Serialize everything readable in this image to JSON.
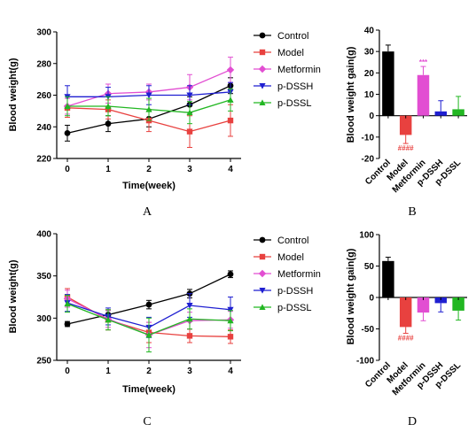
{
  "figure": {
    "panel_letters": [
      "A",
      "B",
      "C",
      "D"
    ]
  },
  "chart_data": [
    {
      "id": "A",
      "type": "line",
      "x": [
        0,
        1,
        2,
        3,
        4
      ],
      "xlabel": "Time(week)",
      "ylabel": "Blood weight(g)",
      "ylim": [
        220,
        300
      ],
      "yticks": [
        220,
        240,
        260,
        280,
        300
      ],
      "grid": false,
      "legend": "right",
      "series": [
        {
          "name": "Control",
          "color": "#000000",
          "marker": "circle",
          "values": [
            236,
            242,
            245,
            254,
            266
          ],
          "errors": [
            5,
            5,
            5,
            5,
            5
          ]
        },
        {
          "name": "Model",
          "color": "#e8413f",
          "marker": "square",
          "values": [
            252,
            251,
            244,
            237,
            244
          ],
          "errors": [
            6,
            6,
            7,
            10,
            10
          ]
        },
        {
          "name": "Metformin",
          "color": "#e24ed2",
          "marker": "diamond",
          "values": [
            253,
            261,
            262,
            265,
            276
          ],
          "errors": [
            5,
            6,
            5,
            8,
            8
          ]
        },
        {
          "name": "p-DSSH",
          "color": "#1f1fd1",
          "marker": "triangle-down",
          "values": [
            259,
            259,
            260,
            260,
            262
          ],
          "errors": [
            7,
            6,
            6,
            6,
            6
          ]
        },
        {
          "name": "p-DSSL",
          "color": "#22b722",
          "marker": "triangle-up",
          "values": [
            253,
            253,
            251,
            249,
            257
          ],
          "errors": [
            6,
            6,
            7,
            7,
            7
          ]
        }
      ]
    },
    {
      "id": "B",
      "type": "bar",
      "categories": [
        "Control",
        "Model",
        "Metformin",
        "p-DSSH",
        "p-DSSL"
      ],
      "colors": [
        "#000000",
        "#e8413f",
        "#e24ed2",
        "#1f1fd1",
        "#22b722"
      ],
      "values": [
        30,
        -9,
        19,
        2,
        3
      ],
      "errors": [
        3,
        4,
        4,
        5,
        6
      ],
      "annotations": [
        {
          "category": "Model",
          "text": "####",
          "color": "#e8413f",
          "position": "below"
        },
        {
          "category": "Metformin",
          "text": "***",
          "color": "#e24ed2",
          "position": "above"
        }
      ],
      "ylabel": "Blood weight gain(g)",
      "ylim": [
        -20,
        40
      ],
      "yticks": [
        -20,
        -10,
        0,
        10,
        20,
        30,
        40
      ]
    },
    {
      "id": "C",
      "type": "line",
      "x": [
        0,
        1,
        2,
        3,
        4
      ],
      "xlabel": "Time(week)",
      "ylabel": "Blood weight(g)",
      "ylim": [
        250,
        400
      ],
      "yticks": [
        250,
        300,
        350,
        400
      ],
      "grid": false,
      "legend": "right",
      "series": [
        {
          "name": "Control",
          "color": "#000000",
          "marker": "circle",
          "values": [
            293,
            304,
            316,
            329,
            352
          ],
          "errors": [
            3,
            5,
            5,
            5,
            4
          ]
        },
        {
          "name": "Model",
          "color": "#e8413f",
          "marker": "square",
          "values": [
            325,
            298,
            283,
            279,
            278
          ],
          "errors": [
            10,
            12,
            12,
            8,
            8
          ]
        },
        {
          "name": "Metformin",
          "color": "#e24ed2",
          "marker": "diamond",
          "values": [
            323,
            299,
            280,
            297,
            298
          ],
          "errors": [
            10,
            10,
            15,
            10,
            10
          ]
        },
        {
          "name": "p-DSSH",
          "color": "#1f1fd1",
          "marker": "triangle-down",
          "values": [
            318,
            302,
            289,
            315,
            310
          ],
          "errors": [
            10,
            10,
            12,
            14,
            15
          ]
        },
        {
          "name": "p-DSSL",
          "color": "#22b722",
          "marker": "triangle-up",
          "values": [
            317,
            298,
            280,
            299,
            297
          ],
          "errors": [
            10,
            12,
            20,
            12,
            12
          ]
        }
      ]
    },
    {
      "id": "D",
      "type": "bar",
      "categories": [
        "Control",
        "Model",
        "Metformin",
        "p-DSSH",
        "p-DSSL"
      ],
      "colors": [
        "#000000",
        "#e8413f",
        "#e24ed2",
        "#1f1fd1",
        "#22b722"
      ],
      "values": [
        58,
        -47,
        -24,
        -9,
        -21
      ],
      "errors": [
        6,
        10,
        13,
        14,
        15
      ],
      "annotations": [
        {
          "category": "Model",
          "text": "####",
          "color": "#e8413f",
          "position": "below"
        }
      ],
      "ylabel": "Blood weight gain(g)",
      "ylim": [
        -100,
        100
      ],
      "yticks": [
        -100,
        -50,
        0,
        50,
        100
      ]
    }
  ]
}
